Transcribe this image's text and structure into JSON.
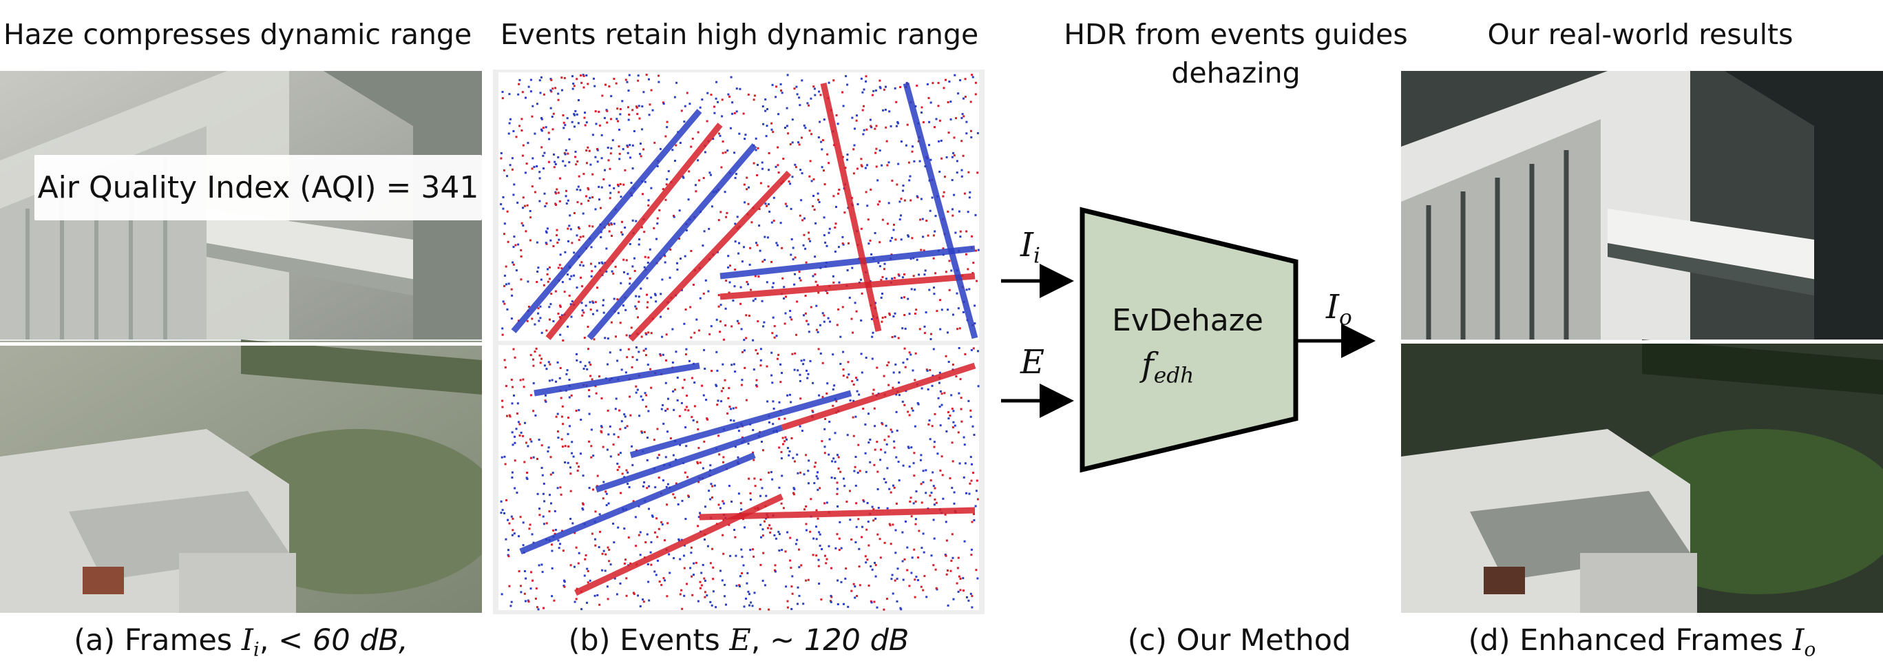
{
  "titles": {
    "a": "Haze compresses dynamic range",
    "b": "Events retain high dynamic range",
    "c_line1": "HDR from events guides",
    "c_line2": "dehazing",
    "d": "Our real-world results"
  },
  "aqi_label": "Air Quality Index (AQI) = 341",
  "method": {
    "name": "EvDehaze",
    "fn_base": "f",
    "fn_sub": "edh",
    "input_frames_base": "I",
    "input_frames_sub": "i",
    "input_events": "E",
    "output_base": "I",
    "output_sub": "o",
    "box_color": "#c9d7c1"
  },
  "captions": {
    "a_prefix": "(a)  Frames ",
    "a_var": "I",
    "a_sub": "i",
    "a_suffix": ", ",
    "a_range": "< 60 dB,",
    "b_prefix": "(b) Events ",
    "b_var": "E",
    "b_suffix": ", ",
    "b_range": "~ 120 dB",
    "c": "(c) Our Method",
    "d_prefix": "(d) Enhanced Frames ",
    "d_var": "I",
    "d_sub": "o"
  },
  "event_colors": {
    "positive": "#d6202a",
    "negative": "#2a3fc4",
    "background": "#ffffff"
  }
}
